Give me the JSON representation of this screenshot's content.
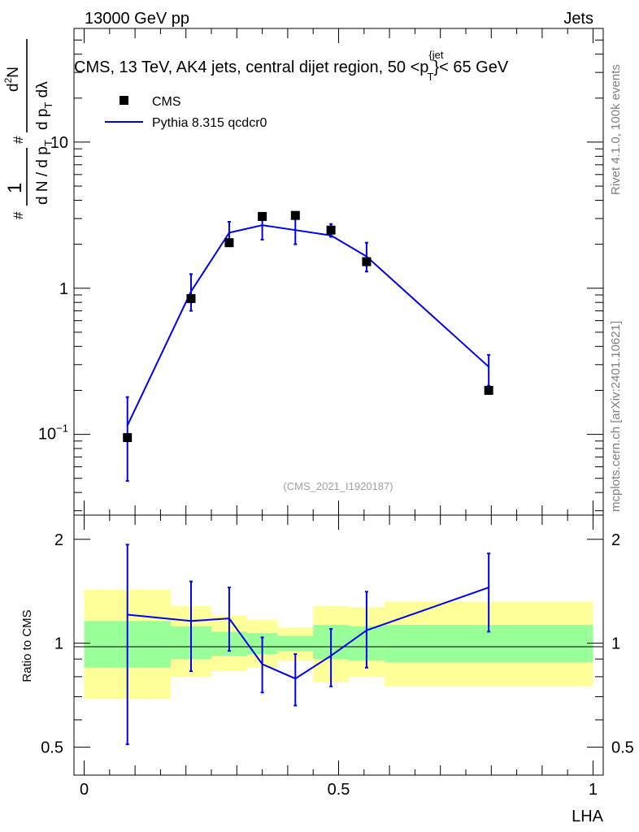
{
  "header": {
    "energy_label": "13000 GeV pp",
    "category_label": "Jets"
  },
  "side_labels": {
    "rivet": "Rivet 4.1.0,  100k events",
    "mcplots": "mcplots.cern.ch [arXiv:2401.10621]"
  },
  "chart_data": [
    {
      "type": "scatter",
      "panel": "main",
      "title_parts": {
        "prefix": "CMS, 13 TeV, AK4 jets, central dijet region, 50 <p",
        "sup": "{jet",
        "sub": "T",
        "suffix": "}< 65 GeV"
      },
      "ylabel_parts": {
        "hash": "#",
        "one": "1",
        "dN": "d N / d p",
        "dN_sub": "T",
        "num_main": "d",
        "num_sup": "2",
        "num_tail": "N",
        "den_main": "d p",
        "den_sub": "T",
        "den_tail": " dλ"
      },
      "yscale": "log",
      "ylim": [
        0.028,
        60
      ],
      "xlim": [
        -0.02,
        1.02
      ],
      "y_ticks": [
        {
          "value": 0.1,
          "base": "10",
          "exp": "−1"
        },
        {
          "value": 1,
          "label": "1"
        },
        {
          "value": 10,
          "label": "10"
        }
      ],
      "watermark": "(CMS_2021_I1920187)",
      "legend": {
        "position": "top-left",
        "entries": [
          {
            "label": "CMS",
            "kind": "marker"
          },
          {
            "label": "Pythia 8.315 qcdcr0",
            "kind": "line"
          }
        ]
      },
      "series": [
        {
          "name": "CMS",
          "color": "#000000",
          "x": [
            0.085,
            0.21,
            0.285,
            0.35,
            0.415,
            0.485,
            0.555,
            0.795
          ],
          "y": [
            0.095,
            0.85,
            2.05,
            3.1,
            3.15,
            2.5,
            1.52,
            0.2
          ]
        },
        {
          "name": "Pythia 8.315 qcdcr0",
          "color": "#0000ee",
          "x": [
            0.085,
            0.21,
            0.285,
            0.35,
            0.415,
            0.485,
            0.555,
            0.795
          ],
          "y": [
            0.115,
            0.95,
            2.4,
            2.7,
            2.5,
            2.3,
            1.65,
            0.29
          ],
          "err_low": [
            0.048,
            0.7,
            2.0,
            2.15,
            2.0,
            2.25,
            1.3,
            0.215
          ],
          "err_high": [
            0.18,
            1.25,
            2.85,
            3.25,
            3.0,
            2.75,
            2.05,
            0.35
          ]
        }
      ]
    },
    {
      "type": "line",
      "panel": "ratio",
      "ylabel": "Ratio to CMS",
      "yscale": "log",
      "ylim": [
        0.415,
        2.35
      ],
      "xlim": [
        -0.02,
        1.02
      ],
      "xlabel": "LHA",
      "x_ticks": [
        {
          "value": 0,
          "label": "0"
        },
        {
          "value": 0.5,
          "label": "0.5"
        },
        {
          "value": 1,
          "label": "1"
        }
      ],
      "y_ticks": [
        {
          "value": 0.5,
          "label": "0.5"
        },
        {
          "value": 1,
          "label": "1"
        },
        {
          "value": 2,
          "label": "2"
        }
      ],
      "bands": [
        {
          "x0": 0.0,
          "x1": 0.17,
          "y1_low": 0.85,
          "y1_high": 1.16,
          "y2_low": 0.69,
          "y2_high": 1.43
        },
        {
          "x0": 0.17,
          "x1": 0.25,
          "y1_low": 0.9,
          "y1_high": 1.12,
          "y2_low": 0.8,
          "y2_high": 1.28
        },
        {
          "x0": 0.25,
          "x1": 0.32,
          "y1_low": 0.92,
          "y1_high": 1.08,
          "y2_low": 0.83,
          "y2_high": 1.2
        },
        {
          "x0": 0.32,
          "x1": 0.38,
          "y1_low": 0.93,
          "y1_high": 1.07,
          "y2_low": 0.85,
          "y2_high": 1.17
        },
        {
          "x0": 0.38,
          "x1": 0.45,
          "y1_low": 0.95,
          "y1_high": 1.05,
          "y2_low": 0.89,
          "y2_high": 1.11
        },
        {
          "x0": 0.45,
          "x1": 0.52,
          "y1_low": 0.9,
          "y1_high": 1.13,
          "y2_low": 0.77,
          "y2_high": 1.28
        },
        {
          "x0": 0.52,
          "x1": 0.59,
          "y1_low": 0.89,
          "y1_high": 1.12,
          "y2_low": 0.8,
          "y2_high": 1.27
        },
        {
          "x0": 0.59,
          "x1": 1.0,
          "y1_low": 0.88,
          "y1_high": 1.13,
          "y2_low": 0.75,
          "y2_high": 1.32
        }
      ],
      "series": [
        {
          "name": "Pythia 8.315 qcdcr0 / CMS",
          "color": "#0000ee",
          "x": [
            0.085,
            0.21,
            0.285,
            0.35,
            0.415,
            0.485,
            0.555,
            0.795
          ],
          "y": [
            1.21,
            1.16,
            1.18,
            0.87,
            0.79,
            0.92,
            1.09,
            1.45
          ],
          "err_low": [
            0.51,
            0.83,
            0.95,
            0.72,
            0.66,
            0.75,
            0.85,
            1.08
          ],
          "err_high": [
            1.93,
            1.51,
            1.45,
            1.04,
            0.93,
            1.1,
            1.41,
            1.82
          ]
        }
      ]
    }
  ]
}
